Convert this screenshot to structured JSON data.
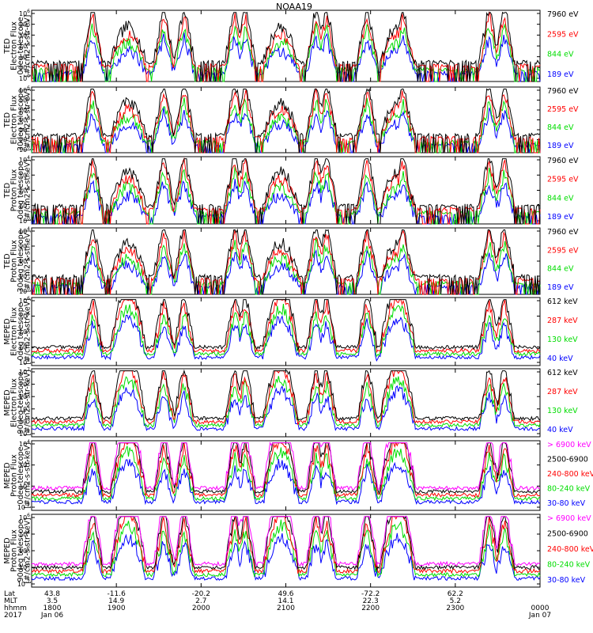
{
  "title": "NOAA19",
  "colors": {
    "black": "#000000",
    "red": "#ff0000",
    "green": "#00dd00",
    "blue": "#0000ff",
    "magenta": "#ff00ff"
  },
  "chart_data": [
    {
      "type": "line",
      "ylabel": [
        "TED",
        "Electron Flux",
        "0deg telescope",
        "[#/cm2-s-str-eV]"
      ],
      "ylog": true,
      "ylim_exp": [
        0,
        6
      ],
      "series": [
        {
          "name": "7960 eV",
          "color": "black"
        },
        {
          "name": "2595 eV",
          "color": "red"
        },
        {
          "name": "844 eV",
          "color": "green"
        },
        {
          "name": "189 eV",
          "color": "blue"
        }
      ]
    },
    {
      "type": "line",
      "ylabel": [
        "TED",
        "Electron Flux",
        "30deg telescope",
        "[#/cm2-s-str-eV]"
      ],
      "ylog": true,
      "ylim_exp": [
        0,
        6
      ],
      "series": [
        {
          "name": "7960 eV",
          "color": "black"
        },
        {
          "name": "2595 eV",
          "color": "red"
        },
        {
          "name": "844 eV",
          "color": "green"
        },
        {
          "name": "189 eV",
          "color": "blue"
        }
      ]
    },
    {
      "type": "line",
      "ylabel": [
        "TED",
        "Proton Flux",
        "0deg telescope",
        "[#/cm2-s-str-eV]"
      ],
      "ylog": true,
      "ylim_exp": [
        0,
        4
      ],
      "series": [
        {
          "name": "7960 eV",
          "color": "black"
        },
        {
          "name": "2595 eV",
          "color": "red"
        },
        {
          "name": "844 eV",
          "color": "green"
        },
        {
          "name": "189 eV",
          "color": "blue"
        }
      ]
    },
    {
      "type": "line",
      "ylabel": [
        "TED",
        "Proton Flux",
        "30deg telescope",
        "[#/cm2-s-str-eV]"
      ],
      "ylog": true,
      "ylim_exp": [
        0,
        4
      ],
      "series": [
        {
          "name": "7960 eV",
          "color": "black"
        },
        {
          "name": "2595 eV",
          "color": "red"
        },
        {
          "name": "844 eV",
          "color": "green"
        },
        {
          "name": "189 eV",
          "color": "blue"
        }
      ]
    },
    {
      "type": "line",
      "ylabel": [
        "MEPED",
        "Electron Flux",
        "0deg telescope",
        "[#/cm2-s-str-keV]"
      ],
      "ylog": true,
      "ylim_exp": [
        2,
        6
      ],
      "series": [
        {
          "name": "612 keV",
          "color": "black"
        },
        {
          "name": "287 keV",
          "color": "red"
        },
        {
          "name": "130 keV",
          "color": "green"
        },
        {
          "name": "40 keV",
          "color": "blue"
        }
      ]
    },
    {
      "type": "line",
      "ylabel": [
        "MEPED",
        "Electron Flux",
        "90deg telescope",
        "[#/cm2-s-str-keV]"
      ],
      "ylog": true,
      "ylim_exp": [
        2,
        7
      ],
      "series": [
        {
          "name": "612 keV",
          "color": "black"
        },
        {
          "name": "287 keV",
          "color": "red"
        },
        {
          "name": "130 keV",
          "color": "green"
        },
        {
          "name": "40 keV",
          "color": "blue"
        }
      ]
    },
    {
      "type": "line",
      "ylabel": [
        "MEPED",
        "Proton Flux",
        "0deg telescope",
        "[#/cm2-s-str-keV]"
      ],
      "ylog": true,
      "ylim_exp": [
        -2,
        4
      ],
      "tick_exps": [
        -2,
        0,
        2,
        4
      ],
      "series": [
        {
          "name": "> 6900 keV",
          "color": "magenta"
        },
        {
          "name": "2500-6900",
          "color": "black"
        },
        {
          "name": "240-800 keV",
          "color": "red"
        },
        {
          "name": "80-240 keV",
          "color": "green"
        },
        {
          "name": "30-80 keV",
          "color": "blue"
        }
      ]
    },
    {
      "type": "line",
      "ylabel": [
        "MEPED",
        "Proton Flux",
        "90deg telescope",
        "[#/cm2-s-str-keV]"
      ],
      "ylog": true,
      "ylim_exp": [
        -2,
        6
      ],
      "tick_exps": [
        -2,
        0,
        2,
        4,
        6
      ],
      "series": [
        {
          "name": "> 6900 keV",
          "color": "magenta"
        },
        {
          "name": "2500-6900",
          "color": "black"
        },
        {
          "name": "240-800 keV",
          "color": "red"
        },
        {
          "name": "80-240 keV",
          "color": "green"
        },
        {
          "name": "30-80 keV",
          "color": "blue"
        }
      ]
    }
  ],
  "footer": {
    "row_labels": [
      "Lat",
      "MLT",
      "hhmm",
      "2017"
    ],
    "columns": [
      {
        "lat": "43.8",
        "mlt": "3.5",
        "hhmm": "1800",
        "date": "Jan 06"
      },
      {
        "lat": "-11.6",
        "mlt": "14.9",
        "hhmm": "1900",
        "date": ""
      },
      {
        "lat": "-20.2",
        "mlt": "2.7",
        "hhmm": "2000",
        "date": ""
      },
      {
        "lat": "49.6",
        "mlt": "14.1",
        "hhmm": "2100",
        "date": ""
      },
      {
        "lat": "-72.2",
        "mlt": "22.3",
        "hhmm": "2200",
        "date": ""
      },
      {
        "lat": "62.2",
        "mlt": "5.2",
        "hhmm": "2300",
        "date": ""
      },
      {
        "lat": "",
        "mlt": "",
        "hhmm": "0000",
        "date": "Jan 07"
      }
    ]
  }
}
